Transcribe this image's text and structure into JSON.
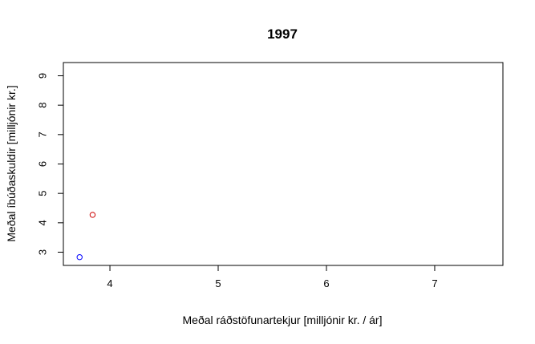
{
  "chart_data": {
    "type": "scatter",
    "title": "1997",
    "xlabel": "Meðal ráðstöfunartekjur [milljónir kr. / ár]",
    "ylabel": "Meðal íbúðaskuldir [milljónir kr.]",
    "xlim": [
      3.57,
      7.63
    ],
    "ylim": [
      2.55,
      9.45
    ],
    "xticks": [
      4,
      5,
      6,
      7
    ],
    "yticks": [
      3,
      4,
      5,
      6,
      7,
      8,
      9
    ],
    "grid": false,
    "legend": "none",
    "points": [
      {
        "x": 3.72,
        "y": 2.83,
        "color": "#0000ff"
      },
      {
        "x": 3.84,
        "y": 4.27,
        "color": "#cc0000"
      }
    ]
  }
}
